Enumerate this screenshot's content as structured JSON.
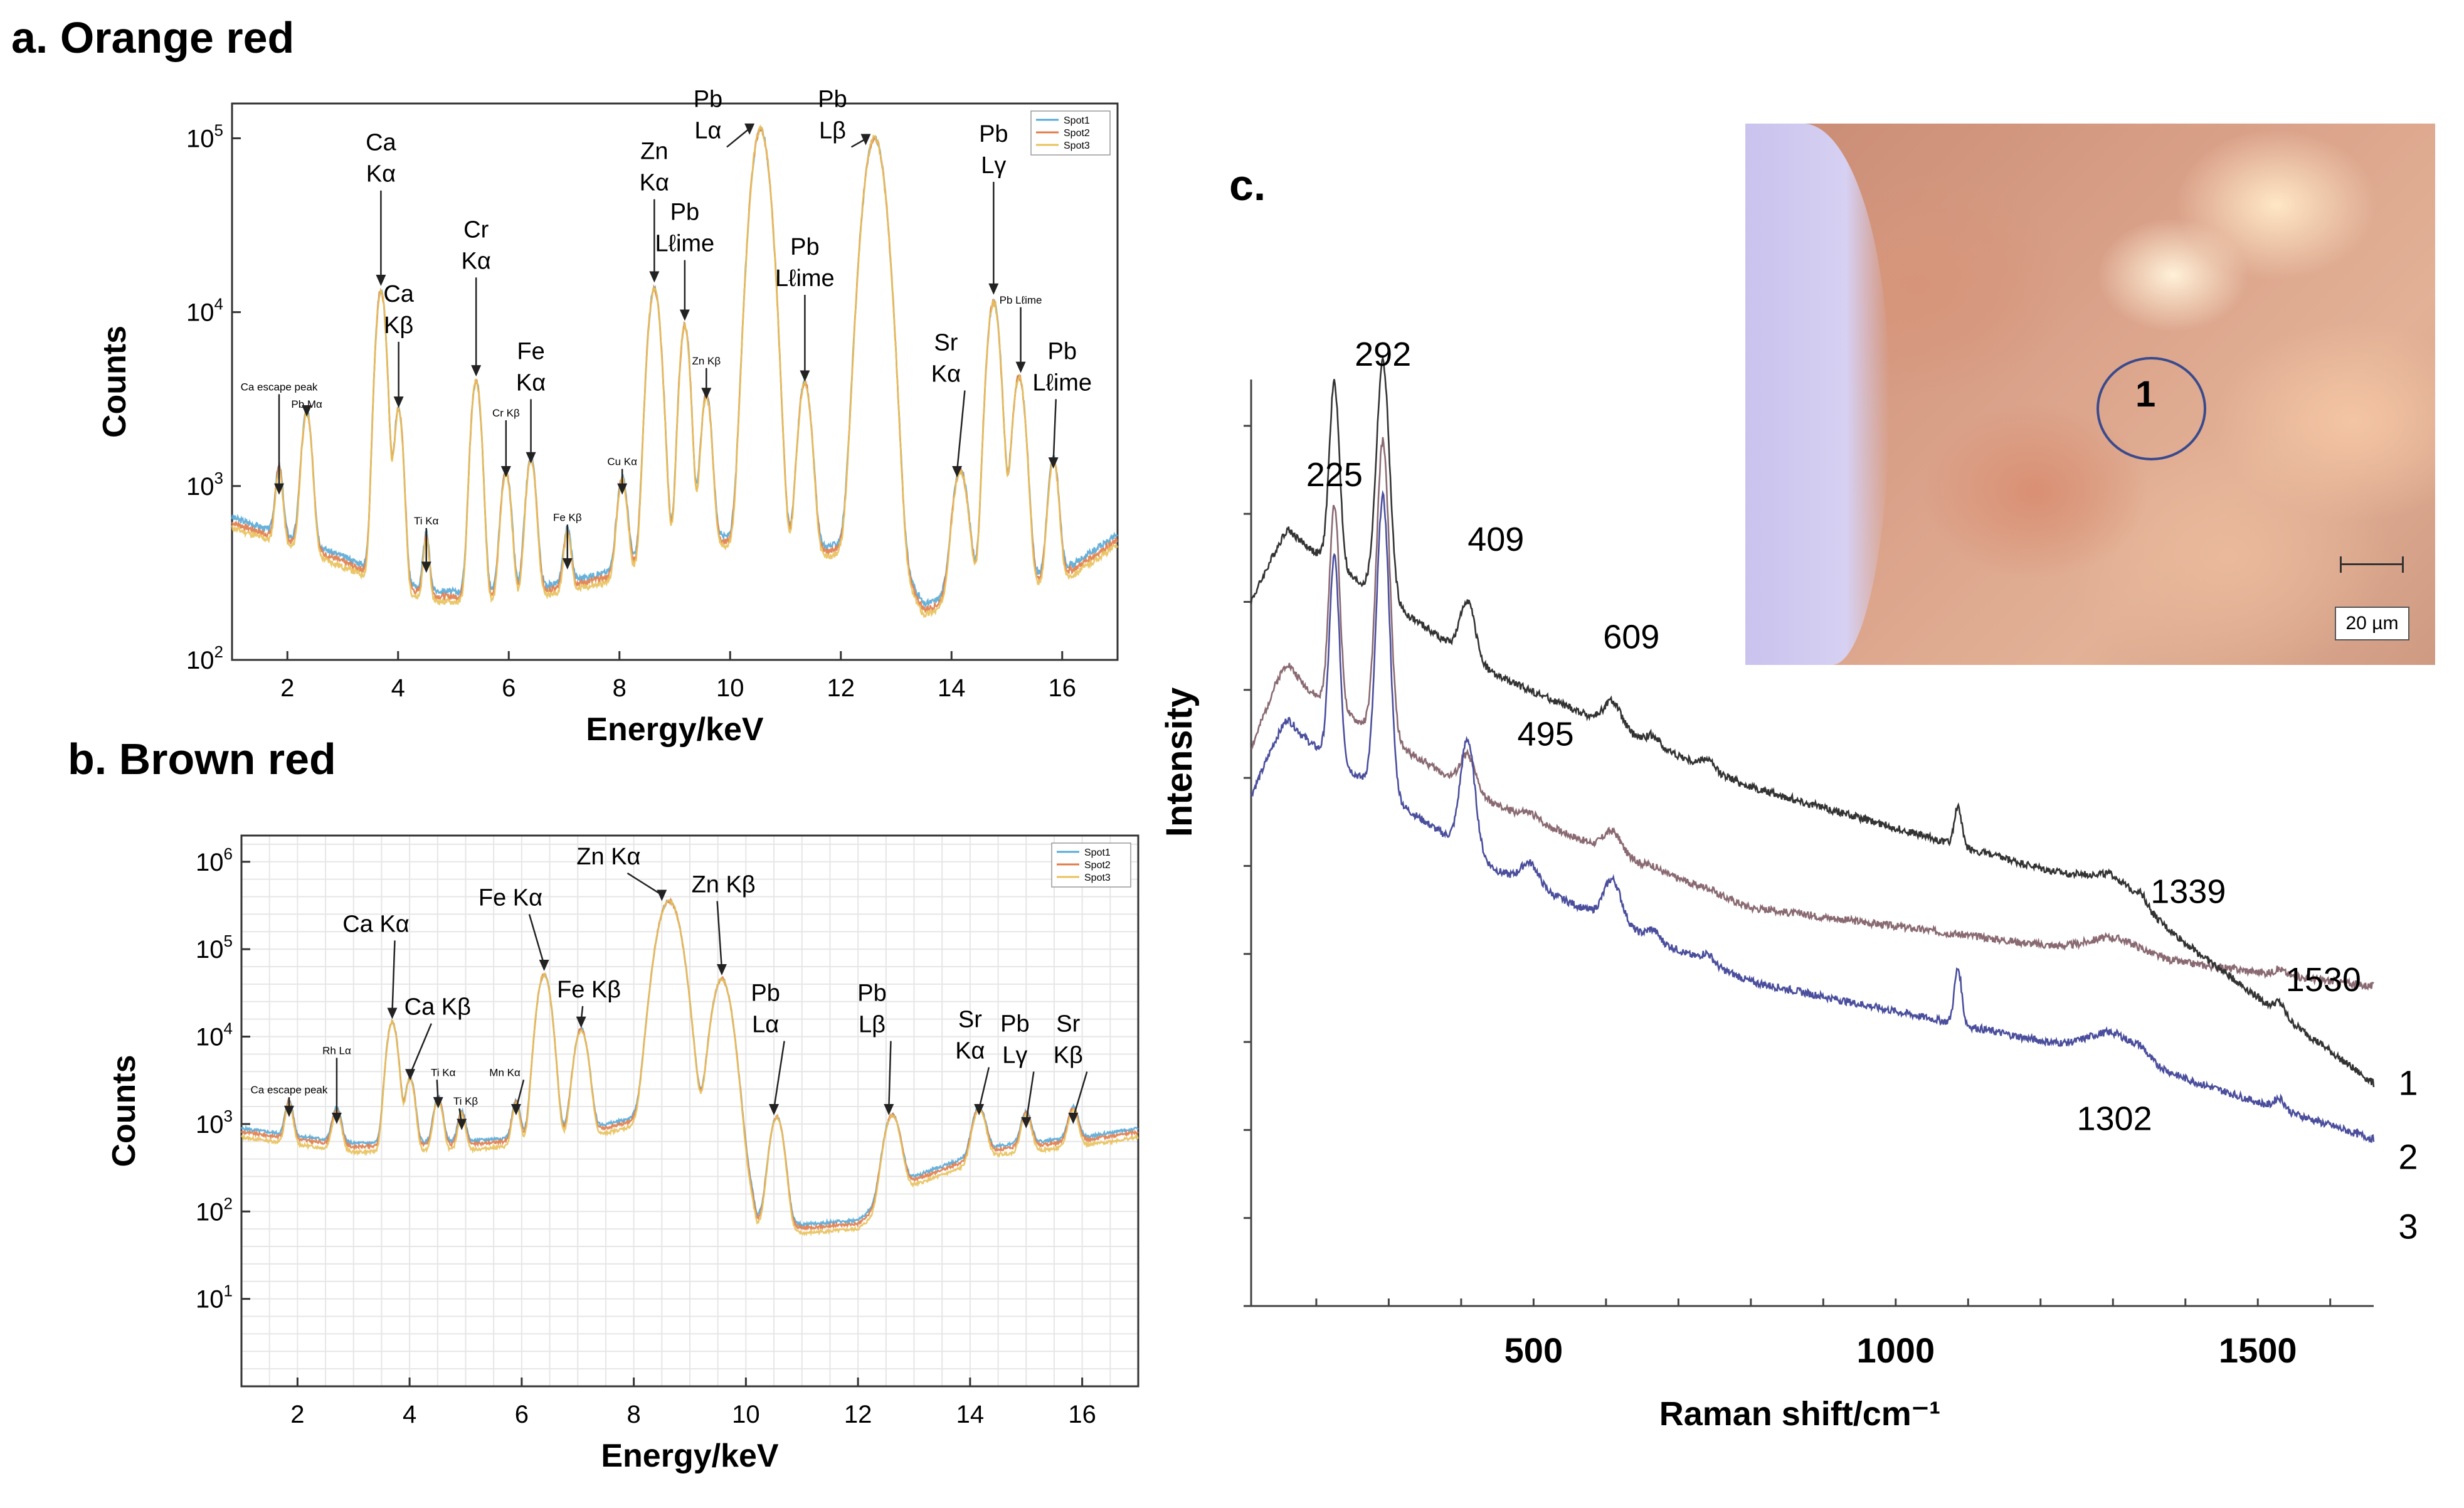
{
  "panels": {
    "a": {
      "title": "a. Orange red"
    },
    "b": {
      "title": "b. Brown red"
    },
    "c": {
      "title": "c."
    }
  },
  "micrograph": {
    "spot_label": "1",
    "scale_label": "20 µm"
  },
  "colors": {
    "spot1": "#56a9d6",
    "spot2": "#e07b4a",
    "spot3": "#e8c15a",
    "raman1": "#333333",
    "raman2": "#8a6a72",
    "raman3": "#4a4e9c"
  },
  "chart_data": [
    {
      "id": "a",
      "type": "line",
      "title": "a. Orange red",
      "xlabel": "Energy/keV",
      "ylabel": "Counts",
      "xlim": [
        1,
        17
      ],
      "ylim_log": [
        2,
        5.2
      ],
      "xticks": [
        2,
        4,
        6,
        8,
        10,
        12,
        14,
        16
      ],
      "yticks": [
        {
          "base": "10",
          "exp": "2",
          "pow": 2
        },
        {
          "base": "10",
          "exp": "3",
          "pow": 3
        },
        {
          "base": "10",
          "exp": "4",
          "pow": 4
        },
        {
          "base": "10",
          "exp": "5",
          "pow": 5
        }
      ],
      "legend": [
        "Spot1",
        "Spot2",
        "Spot3"
      ],
      "baseline": {
        "x": [
          1.0,
          2.5,
          4.5,
          6.0,
          8.0,
          9.5,
          11.0,
          12.8,
          13.5,
          14.3,
          15.5,
          16.2,
          17.0
        ],
        "log": [
          2.82,
          2.66,
          2.4,
          2.38,
          2.52,
          2.74,
          2.62,
          2.7,
          2.32,
          2.4,
          2.48,
          2.55,
          2.72
        ]
      },
      "peaks": [
        {
          "x": 1.85,
          "log": 2.88,
          "w": 0.06
        },
        {
          "x": 2.35,
          "log": 3.35,
          "w": 0.08
        },
        {
          "x": 3.69,
          "log": 4.12,
          "w": 0.08
        },
        {
          "x": 4.01,
          "log": 3.4,
          "w": 0.07
        },
        {
          "x": 4.51,
          "log": 2.45,
          "w": 0.05
        },
        {
          "x": 5.41,
          "log": 3.58,
          "w": 0.08
        },
        {
          "x": 5.95,
          "log": 3.0,
          "w": 0.08
        },
        {
          "x": 6.4,
          "log": 3.08,
          "w": 0.08
        },
        {
          "x": 7.06,
          "log": 2.47,
          "w": 0.06
        },
        {
          "x": 8.05,
          "log": 2.9,
          "w": 0.08
        },
        {
          "x": 8.63,
          "log": 4.12,
          "w": 0.1
        },
        {
          "x": 9.18,
          "log": 3.9,
          "w": 0.08
        },
        {
          "x": 9.57,
          "log": 3.45,
          "w": 0.08
        },
        {
          "x": 10.55,
          "log": 5.05,
          "w": 0.14
        },
        {
          "x": 11.35,
          "log": 3.55,
          "w": 0.1
        },
        {
          "x": 12.61,
          "log": 5.0,
          "w": 0.16
        },
        {
          "x": 14.16,
          "log": 3.0,
          "w": 0.12
        },
        {
          "x": 14.76,
          "log": 4.05,
          "w": 0.1
        },
        {
          "x": 15.22,
          "log": 3.6,
          "w": 0.1
        },
        {
          "x": 15.84,
          "log": 3.05,
          "w": 0.08
        }
      ],
      "series": [
        {
          "name": "Spot1",
          "color": "#56a9d6",
          "offset": 0.0,
          "seed": 3
        },
        {
          "name": "Spot2",
          "color": "#e07b4a",
          "offset": -0.03,
          "seed": 7
        },
        {
          "name": "Spot3",
          "color": "#e8c15a",
          "offset": -0.06,
          "seed": 11
        }
      ],
      "annotations": [
        {
          "lines": [
            "Ca escape peak"
          ],
          "x": 1.85,
          "tlog": 3.55,
          "alog": 2.95,
          "small": true
        },
        {
          "lines": [
            "Pb Mα"
          ],
          "x": 2.35,
          "tlog": 3.45,
          "alog": 3.4,
          "small": true
        },
        {
          "lines": [
            "Ca",
            "Kα"
          ],
          "x": 3.69,
          "tlog": 4.75,
          "alog": 4.15
        },
        {
          "lines": [
            "Ca",
            "Kβ"
          ],
          "x": 4.01,
          "tlog": 3.88,
          "alog": 3.45
        },
        {
          "lines": [
            "Ti Kα"
          ],
          "x": 4.51,
          "tlog": 2.78,
          "alog": 2.5,
          "small": true
        },
        {
          "lines": [
            "Cr",
            "Kα"
          ],
          "x": 5.41,
          "tlog": 4.25,
          "alog": 3.63
        },
        {
          "lines": [
            "Cr Kβ"
          ],
          "x": 5.95,
          "tlog": 3.4,
          "alog": 3.05,
          "small": true
        },
        {
          "lines": [
            "Fe",
            "Kα"
          ],
          "x": 6.4,
          "tlog": 3.55,
          "alog": 3.13
        },
        {
          "lines": [
            "Fe Kβ"
          ],
          "x": 7.06,
          "tlog": 2.8,
          "alog": 2.52,
          "small": true
        },
        {
          "lines": [
            "Cu Kα"
          ],
          "x": 8.05,
          "tlog": 3.12,
          "alog": 2.95,
          "small": true
        },
        {
          "lines": [
            "Zn",
            "Kα"
          ],
          "x": 8.63,
          "tlog": 4.7,
          "alog": 4.17
        },
        {
          "lines": [
            "Pb",
            "Lℓime"
          ],
          "x": 9.18,
          "tlog": 4.35,
          "alog": 3.95
        },
        {
          "lines": [
            "Zn Kβ"
          ],
          "x": 9.57,
          "tlog": 3.7,
          "alog": 3.5,
          "small": true
        },
        {
          "lines": [
            "Pb",
            "Lα"
          ],
          "x": 9.6,
          "tlog": 5.0,
          "alog": 5.02,
          "ax": 10.35
        },
        {
          "lines": [
            "Pb",
            "Lℓime"
          ],
          "x": 11.35,
          "tlog": 4.15,
          "alog": 3.6
        },
        {
          "lines": [
            "Pb",
            "Lβ"
          ],
          "x": 11.85,
          "tlog": 5.0,
          "alog": 4.96,
          "ax": 12.45
        },
        {
          "lines": [
            "Sr",
            "Kα"
          ],
          "x": 13.9,
          "tlog": 3.6,
          "alog": 3.05,
          "ax": 14.1
        },
        {
          "lines": [
            "Pb",
            "Lγ"
          ],
          "x": 14.76,
          "tlog": 4.8,
          "alog": 4.1
        },
        {
          "lines": [
            "Pb Lℓime"
          ],
          "x": 15.25,
          "tlog": 4.05,
          "alog": 3.65,
          "small": true
        },
        {
          "lines": [
            "Pb",
            "Lℓime"
          ],
          "x": 16.0,
          "tlog": 3.55,
          "alog": 3.1,
          "ax": 15.84
        }
      ]
    },
    {
      "id": "b",
      "type": "line",
      "title": "b. Brown red",
      "xlabel": "Energy/keV",
      "ylabel": "Counts",
      "xlim": [
        1,
        17
      ],
      "ylim_log": [
        0,
        6.3
      ],
      "xticks": [
        2,
        4,
        6,
        8,
        10,
        12,
        14,
        16
      ],
      "yticks": [
        {
          "base": "10",
          "exp": "1",
          "pow": 1
        },
        {
          "base": "10",
          "exp": "2",
          "pow": 2
        },
        {
          "base": "10",
          "exp": "3",
          "pow": 3
        },
        {
          "base": "10",
          "exp": "4",
          "pow": 4
        },
        {
          "base": "10",
          "exp": "5",
          "pow": 5
        },
        {
          "base": "10",
          "exp": "6",
          "pow": 6
        }
      ],
      "legend": [
        "Spot1",
        "Spot2",
        "Spot3"
      ],
      "baseline": {
        "x": [
          1.0,
          3.0,
          5.0,
          7.0,
          8.5,
          9.9,
          10.2,
          11.0,
          12.0,
          13.0,
          14.5,
          16.0,
          17.0
        ],
        "log": [
          2.95,
          2.78,
          2.8,
          2.92,
          3.15,
          2.95,
          1.95,
          1.85,
          1.9,
          2.4,
          2.75,
          2.85,
          2.95
        ]
      },
      "peaks": [
        {
          "x": 1.85,
          "log": 3.05,
          "w": 0.06
        },
        {
          "x": 2.7,
          "log": 2.95,
          "w": 0.07
        },
        {
          "x": 3.69,
          "log": 4.15,
          "w": 0.08
        },
        {
          "x": 4.01,
          "log": 3.45,
          "w": 0.07
        },
        {
          "x": 4.51,
          "log": 3.15,
          "w": 0.07
        },
        {
          "x": 4.93,
          "log": 2.9,
          "w": 0.06
        },
        {
          "x": 5.9,
          "log": 3.05,
          "w": 0.06
        },
        {
          "x": 6.4,
          "log": 4.7,
          "w": 0.1
        },
        {
          "x": 7.06,
          "log": 4.05,
          "w": 0.1
        },
        {
          "x": 8.63,
          "log": 5.55,
          "w": 0.16
        },
        {
          "x": 9.57,
          "log": 4.65,
          "w": 0.13
        },
        {
          "x": 10.55,
          "log": 3.05,
          "w": 0.1
        },
        {
          "x": 12.61,
          "log": 3.05,
          "w": 0.12
        },
        {
          "x": 14.16,
          "log": 3.05,
          "w": 0.1
        },
        {
          "x": 15.0,
          "log": 2.9,
          "w": 0.08
        },
        {
          "x": 15.84,
          "log": 2.95,
          "w": 0.08
        }
      ],
      "series": [
        {
          "name": "Spot1",
          "color": "#56a9d6",
          "offset": 0.0,
          "seed": 5
        },
        {
          "name": "Spot2",
          "color": "#e07b4a",
          "offset": -0.04,
          "seed": 9
        },
        {
          "name": "Spot3",
          "color": "#e8c15a",
          "offset": -0.1,
          "seed": 13
        }
      ],
      "annotations": [
        {
          "lines": [
            "Ca escape peak"
          ],
          "x": 1.85,
          "tlog": 3.35,
          "alog": 3.08,
          "small": true
        },
        {
          "lines": [
            "Rh Lα"
          ],
          "x": 2.7,
          "tlog": 3.8,
          "alog": 3.0,
          "small": true
        },
        {
          "lines": [
            "Ca Kα"
          ],
          "x": 3.4,
          "tlog": 5.2,
          "alog": 4.2,
          "ax": 3.69
        },
        {
          "lines": [
            "Ca Kβ"
          ],
          "x": 4.5,
          "tlog": 4.25,
          "alog": 3.5,
          "ax": 4.01
        },
        {
          "lines": [
            "Ti Kα"
          ],
          "x": 4.6,
          "tlog": 3.55,
          "alog": 3.18,
          "small": true,
          "ax": 4.51
        },
        {
          "lines": [
            "Ti Kβ"
          ],
          "x": 5.0,
          "tlog": 3.22,
          "alog": 2.93,
          "small": true,
          "ax": 4.93
        },
        {
          "lines": [
            "Mn Kα"
          ],
          "x": 5.7,
          "tlog": 3.55,
          "alog": 3.1,
          "small": true,
          "ax": 5.9
        },
        {
          "lines": [
            "Fe Kα"
          ],
          "x": 5.8,
          "tlog": 5.5,
          "alog": 4.75,
          "ax": 6.4
        },
        {
          "lines": [
            "Fe Kβ"
          ],
          "x": 7.2,
          "tlog": 4.45,
          "alog": 4.1,
          "ax": 7.06
        },
        {
          "lines": [
            "Zn Kα"
          ],
          "x": 7.55,
          "tlog": 5.97,
          "alog": 5.55,
          "ax": 8.5
        },
        {
          "lines": [
            "Zn Kβ"
          ],
          "x": 9.6,
          "tlog": 5.65,
          "alog": 4.7,
          "ax": 9.57
        },
        {
          "lines": [
            "Pb",
            "Lα"
          ],
          "x": 10.35,
          "tlog": 4.05,
          "alog": 3.1,
          "ax": 10.5
        },
        {
          "lines": [
            "Pb",
            "Lβ"
          ],
          "x": 12.25,
          "tlog": 4.05,
          "alog": 3.1,
          "ax": 12.55
        },
        {
          "lines": [
            "Sr",
            "Kα"
          ],
          "x": 14.0,
          "tlog": 3.75,
          "alog": 3.1,
          "ax": 14.16
        },
        {
          "lines": [
            "Pb",
            "Lγ"
          ],
          "x": 14.8,
          "tlog": 3.7,
          "alog": 2.95,
          "ax": 15.0
        },
        {
          "lines": [
            "Sr",
            "Kβ"
          ],
          "x": 15.75,
          "tlog": 3.7,
          "alog": 3.0,
          "ax": 15.84
        }
      ]
    },
    {
      "id": "c",
      "type": "line",
      "title": "c.",
      "xlabel": "Raman shift/cm⁻¹",
      "ylabel": "Intensity",
      "xlim": [
        110,
        1660
      ],
      "ylim": [
        0,
        1
      ],
      "xticks": [
        500,
        1000,
        1500
      ],
      "peaks": [
        {
          "x": 150,
          "h": 0.02,
          "w": 20
        },
        {
          "x": 225,
          "h": 0.22,
          "w": 7
        },
        {
          "x": 292,
          "h": 0.32,
          "w": 9
        },
        {
          "x": 409,
          "h": 0.12,
          "w": 10
        },
        {
          "x": 495,
          "h": 0.03,
          "w": 12
        },
        {
          "x": 609,
          "h": 0.045,
          "w": 12
        },
        {
          "x": 665,
          "h": 0.01,
          "w": 8
        },
        {
          "x": 740,
          "h": 0.01,
          "w": 8
        },
        {
          "x": 1086,
          "h": 0.06,
          "w": 5
        },
        {
          "x": 1302,
          "h": 0.025,
          "w": 35
        },
        {
          "x": 1339,
          "h": 0.01,
          "w": 8
        },
        {
          "x": 1530,
          "h": 0.012,
          "w": 7
        }
      ],
      "series": [
        {
          "name": "1",
          "color": "#8a6a72",
          "base": [
            0.7,
            0.54,
            0.43,
            0.38,
            0.345
          ],
          "scale": [
            1.0,
            1.0,
            1.0,
            0.3,
            0.2,
            0.5,
            0.3,
            0.3,
            0.0,
            0.7,
            0.0,
            0.5
          ],
          "seed": 2
        },
        {
          "name": "2",
          "color": "#333333",
          "base": [
            0.86,
            0.68,
            0.56,
            0.45,
            0.24
          ],
          "scale": [
            0.3,
            0.9,
            0.8,
            0.5,
            0.0,
            0.6,
            1.0,
            1.0,
            0.7,
            0.6,
            1.0,
            1.0
          ],
          "seed": 4
        },
        {
          "name": "3",
          "color": "#4a4e9c",
          "base": [
            0.65,
            0.47,
            0.35,
            0.27,
            0.18
          ],
          "scale": [
            0.6,
            1.0,
            1.0,
            1.0,
            0.8,
            1.0,
            1.0,
            1.0,
            1.0,
            1.0,
            0.6,
            1.0
          ],
          "seed": 6
        }
      ],
      "peak_labels": [
        {
          "text": "225",
          "x": 225
        },
        {
          "text": "292",
          "x": 292
        },
        {
          "text": "409",
          "x": 409
        },
        {
          "text": "609",
          "x": 609
        },
        {
          "text": "495",
          "x": 495
        },
        {
          "text": "1339",
          "x": 1339
        },
        {
          "text": "1530",
          "x": 1530
        },
        {
          "text": "1302",
          "x": 1302
        }
      ]
    }
  ]
}
